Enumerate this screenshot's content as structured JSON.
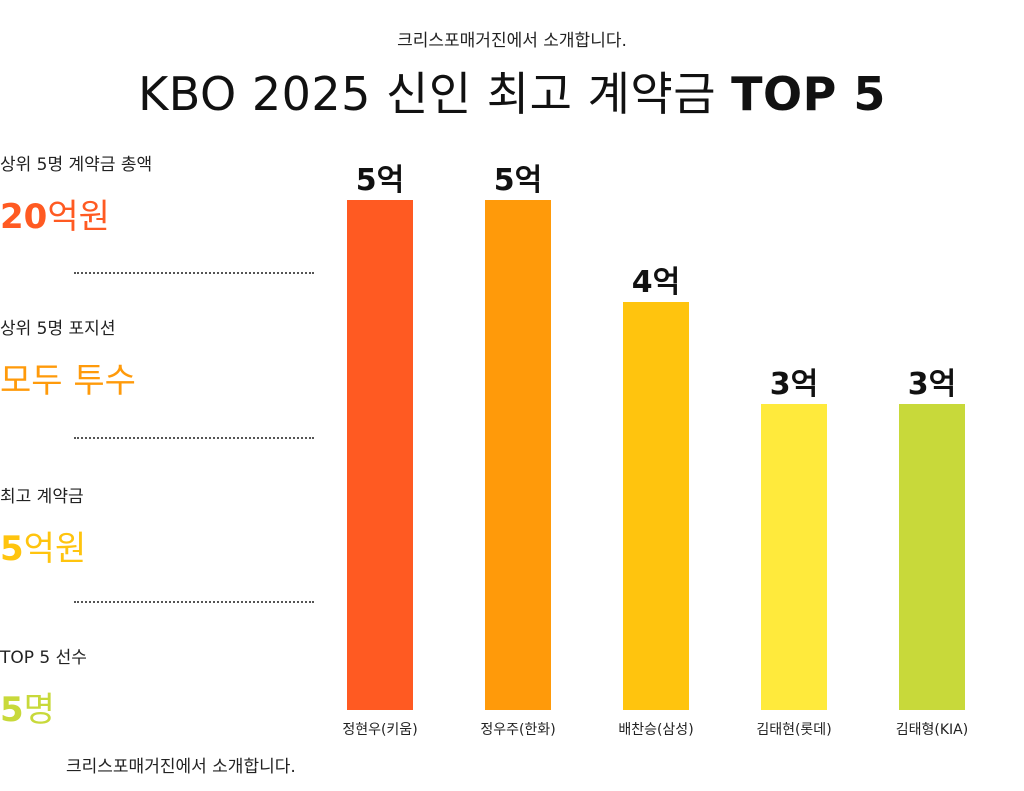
{
  "header": {
    "subtitle": "크리스포매거진에서 소개합니다.",
    "title_main": "KBO 2025 신인 최고 계약금",
    "title_bold": "TOP 5"
  },
  "stats": [
    {
      "label": "상위 5명 계약금 총액",
      "num": "20",
      "unit": "억원",
      "color": "#ff5a22"
    },
    {
      "label": "상위 5명 포지션",
      "num": "",
      "unit": "모두 투수",
      "color": "#ff9a0a"
    },
    {
      "label": "최고 계약금",
      "num": "5",
      "unit": "억원",
      "color": "#ffc40e"
    },
    {
      "label": "TOP 5 선수",
      "num": "5",
      "unit": "명",
      "color": "#c8d93a"
    }
  ],
  "footer": "크리스포매거진에서 소개합니다.",
  "chart_data": {
    "type": "bar",
    "categories": [
      "정현우(키움)",
      "정우주(한화)",
      "배찬승(삼성)",
      "김태현(롯데)",
      "김태형(KIA)"
    ],
    "values": [
      5,
      5,
      4,
      3,
      3
    ],
    "data_labels": [
      "5억",
      "5억",
      "4억",
      "3억",
      "3억"
    ],
    "colors": [
      "#ff5a22",
      "#ff9a0a",
      "#ffc40e",
      "#ffea3c",
      "#c8d93a"
    ],
    "title": "",
    "xlabel": "",
    "ylabel": "",
    "grid": false
  }
}
